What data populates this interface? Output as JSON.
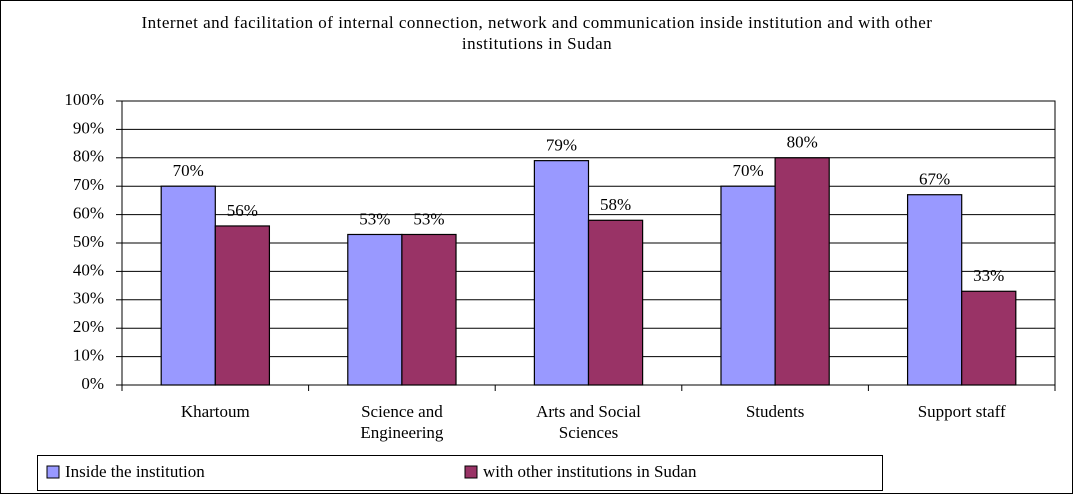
{
  "chart_data": {
    "type": "bar",
    "title": "Internet and facilitation of internal connection, network and communication inside institution and with other institutions in Sudan",
    "categories": [
      "Khartoum",
      "Science and Engineering",
      "Arts and Social Sciences",
      "Students",
      "Support staff"
    ],
    "series": [
      {
        "name": "Inside the institution",
        "color": "#9999ff",
        "values": [
          70,
          53,
          79,
          70,
          67
        ],
        "value_labels": [
          "70%",
          "53%",
          "79%",
          "70%",
          "67%"
        ]
      },
      {
        "name": "with other institutions in Sudan",
        "color": "#993366",
        "values": [
          56,
          53,
          58,
          80,
          33
        ],
        "value_labels": [
          "56%",
          "53%",
          "58%",
          "80%",
          "33%"
        ]
      }
    ],
    "ylim": [
      0,
      100
    ],
    "yticks": [
      {
        "value": 0,
        "label": "0%"
      },
      {
        "value": 10,
        "label": "10%"
      },
      {
        "value": 20,
        "label": "20%"
      },
      {
        "value": 30,
        "label": "30%"
      },
      {
        "value": 40,
        "label": "40%"
      },
      {
        "value": 50,
        "label": "50%"
      },
      {
        "value": 60,
        "label": "60%"
      },
      {
        "value": 70,
        "label": "70%"
      },
      {
        "value": 80,
        "label": "80%"
      },
      {
        "value": 90,
        "label": "90%"
      },
      {
        "value": 100,
        "label": "100%"
      }
    ],
    "grid": true,
    "legend": "bottom"
  }
}
